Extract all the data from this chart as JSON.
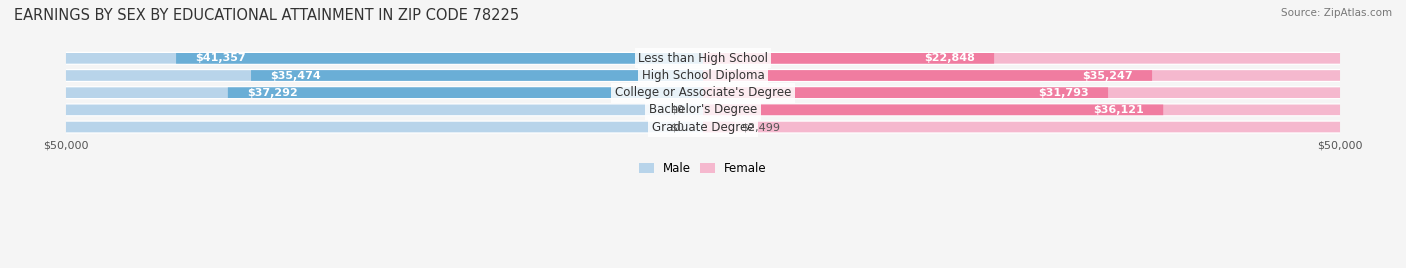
{
  "title": "EARNINGS BY SEX BY EDUCATIONAL ATTAINMENT IN ZIP CODE 78225",
  "source": "Source: ZipAtlas.com",
  "categories": [
    "Less than High School",
    "High School Diploma",
    "College or Associate's Degree",
    "Bachelor's Degree",
    "Graduate Degree"
  ],
  "male_values": [
    41357,
    35474,
    37292,
    0,
    0
  ],
  "female_values": [
    22848,
    35247,
    31793,
    36121,
    2499
  ],
  "max_val": 50000,
  "male_color_full": "#6aaed6",
  "male_color_light": "#b8d4ea",
  "female_color_full": "#f07ca0",
  "female_color_light": "#f5b8ce",
  "bar_bg": "#e8eaf0",
  "bg_color": "#f5f5f5",
  "row_bg": "#f0f0f5",
  "bar_height": 0.62,
  "title_fontsize": 10.5,
  "label_fontsize": 8.5,
  "value_fontsize": 8.0,
  "axis_fontsize": 8.0
}
